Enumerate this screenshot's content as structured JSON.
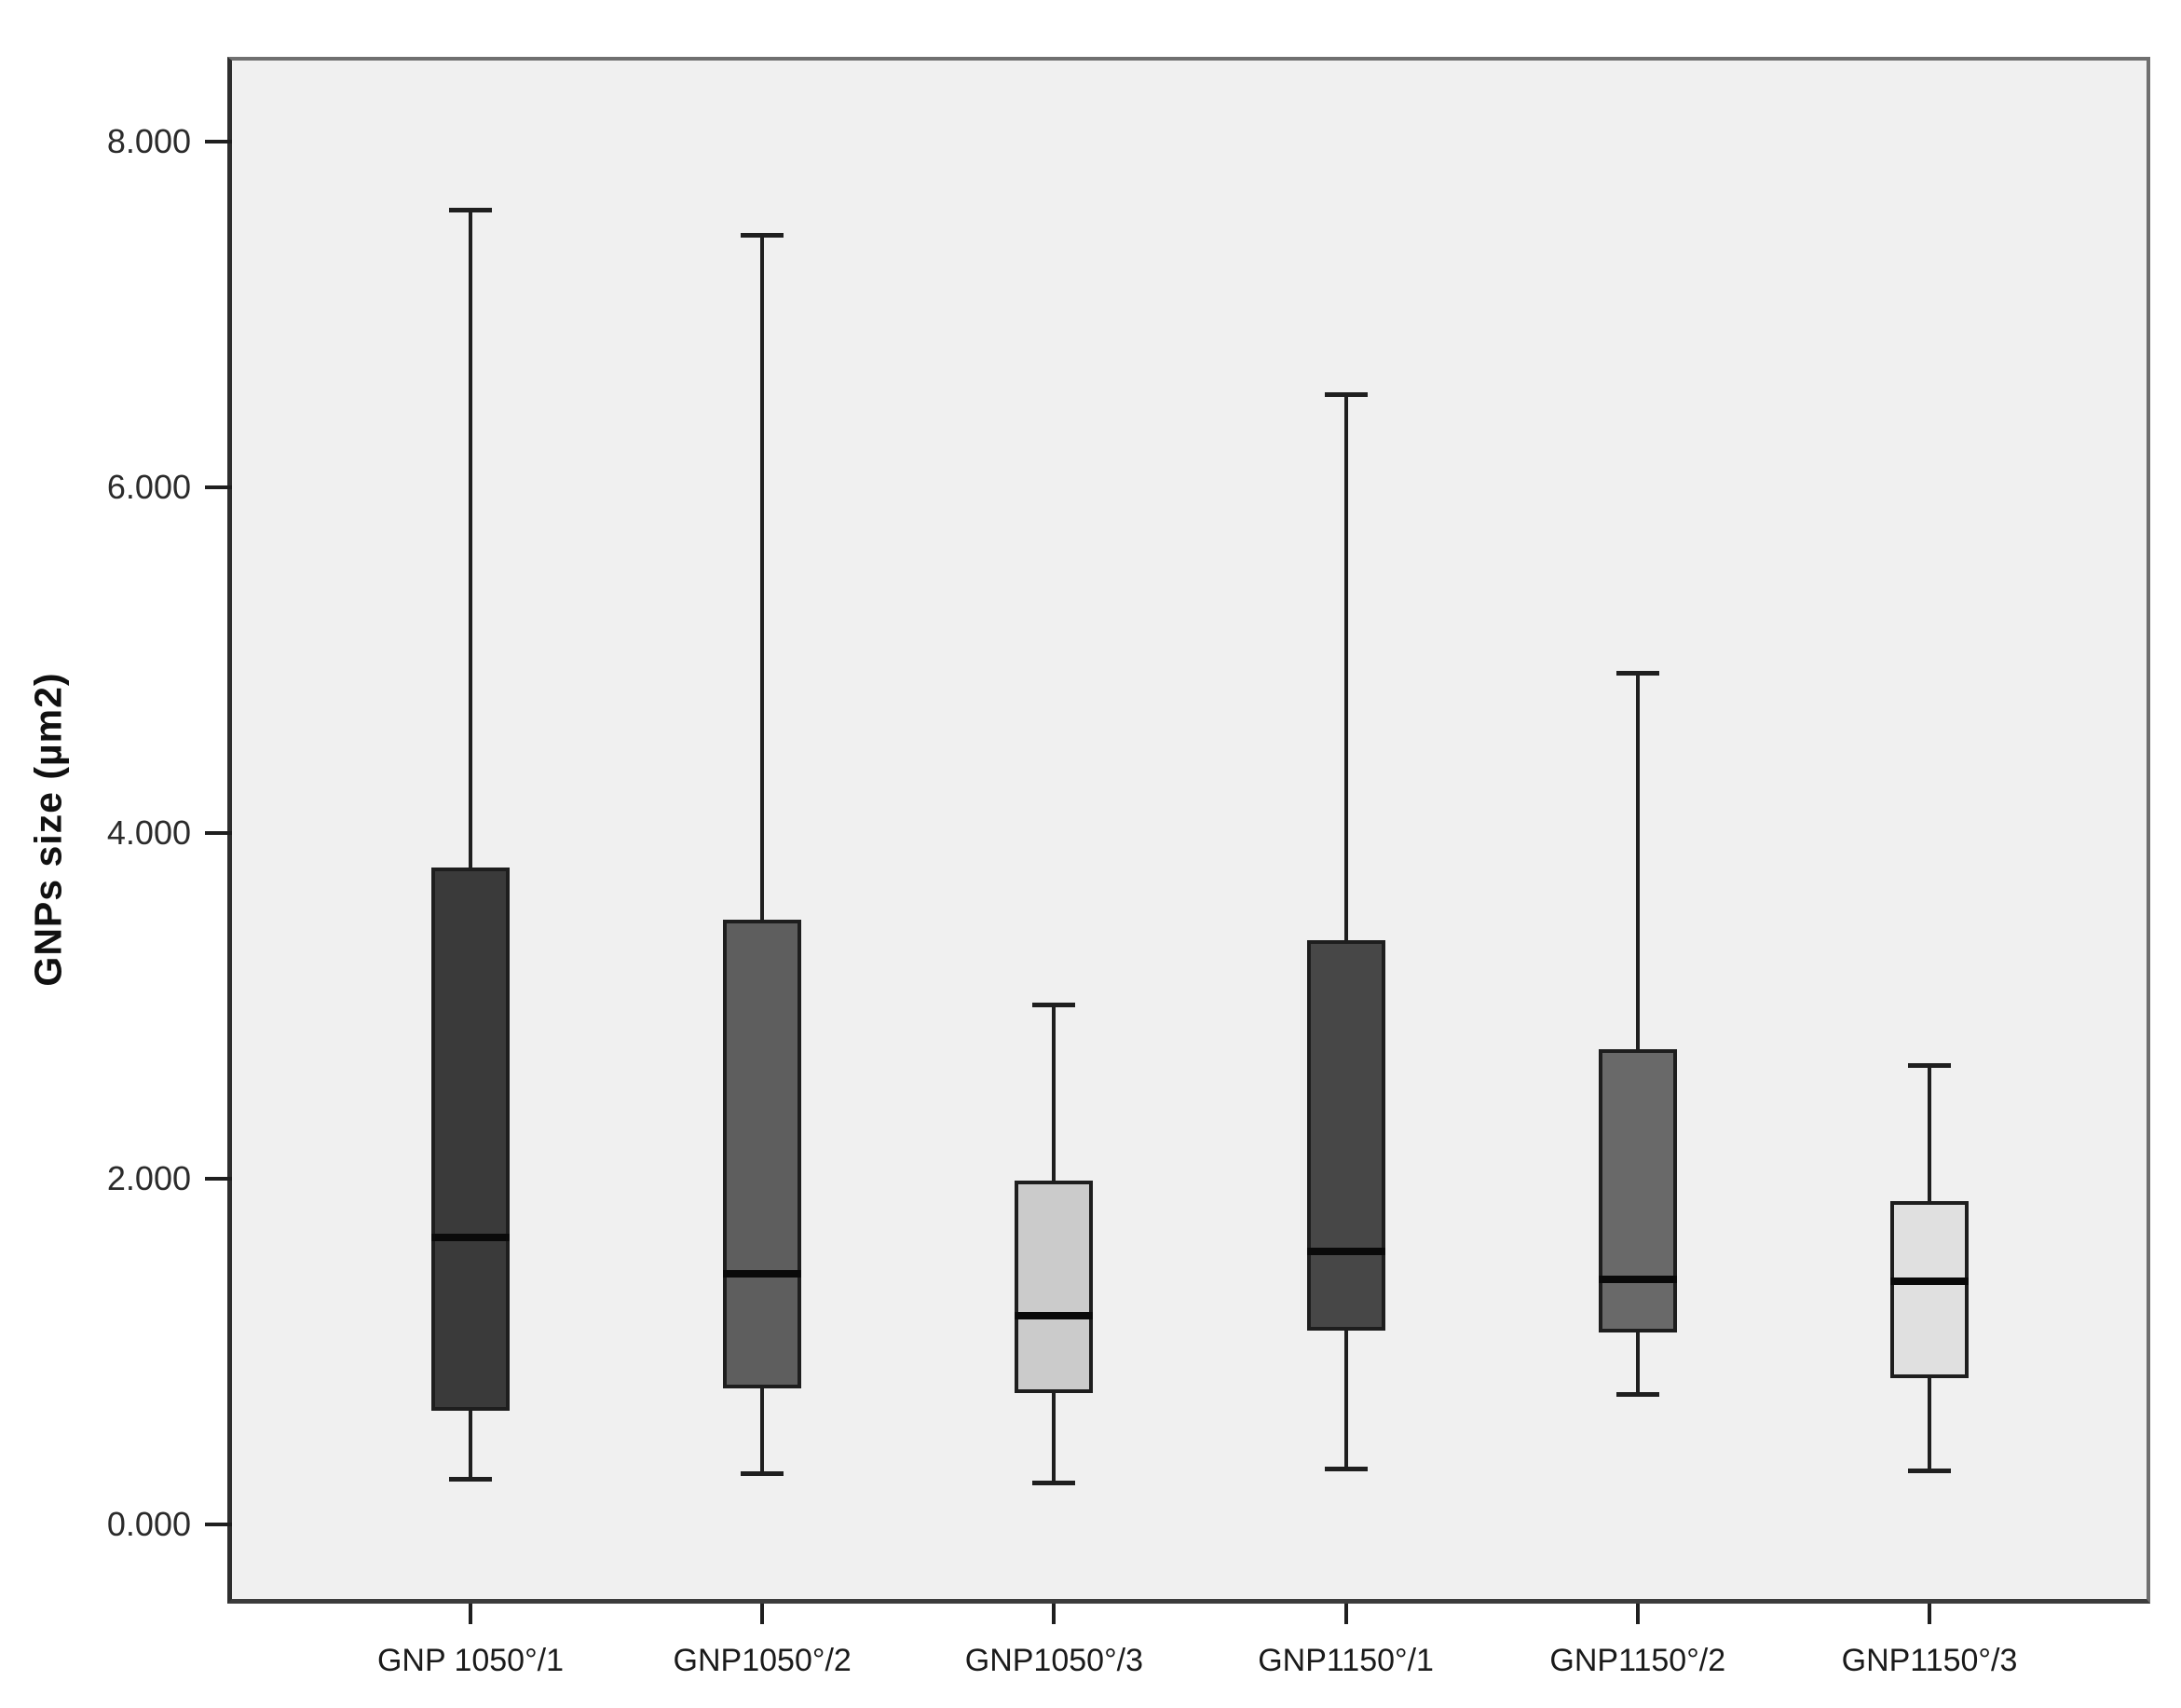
{
  "chart_data": {
    "type": "boxplot",
    "title": "",
    "xlabel": "",
    "ylabel": "GNPs size (µm2)",
    "ylim": [
      -0.43,
      8.47
    ],
    "yticks": [
      {
        "value": 8,
        "label": "8.000"
      },
      {
        "value": 6,
        "label": "6.000"
      },
      {
        "value": 4,
        "label": "4.000"
      },
      {
        "value": 2,
        "label": "2.000"
      },
      {
        "value": 0,
        "label": "0.000"
      }
    ],
    "categories": [
      "GNP 1050°/1",
      "GNP1050°/2",
      "GNP1050°/3",
      "GNP1150°/1",
      "GNP1150°/2",
      "GNP1150°/3"
    ],
    "boxes": [
      {
        "category": "GNP 1050°/1",
        "whisker_low": 0.26,
        "q1": 0.66,
        "median": 1.66,
        "q3": 3.8,
        "whisker_high": 7.61,
        "fill": "#3a3a3a"
      },
      {
        "category": "GNP1050°/2",
        "whisker_low": 0.29,
        "q1": 0.79,
        "median": 1.45,
        "q3": 3.5,
        "whisker_high": 7.46,
        "fill": "#5e5e5e"
      },
      {
        "category": "GNP1050°/3",
        "whisker_low": 0.24,
        "q1": 0.76,
        "median": 1.21,
        "q3": 1.99,
        "whisker_high": 3.01,
        "fill": "#cbcbcb"
      },
      {
        "category": "GNP1150°/1",
        "whisker_low": 0.32,
        "q1": 1.12,
        "median": 1.58,
        "q3": 3.38,
        "whisker_high": 6.54,
        "fill": "#474747"
      },
      {
        "category": "GNP1150°/2",
        "whisker_low": 0.75,
        "q1": 1.11,
        "median": 1.42,
        "q3": 2.75,
        "whisker_high": 4.93,
        "fill": "#696969"
      },
      {
        "category": "GNP1150°/3",
        "whisker_low": 0.31,
        "q1": 0.85,
        "median": 1.41,
        "q3": 1.87,
        "whisker_high": 2.66,
        "fill": "#e0e0e0"
      }
    ],
    "layout": {
      "grid": false,
      "legend": "none",
      "plot_background": "#f0f0f0",
      "page_background": "#ffffff",
      "frame_color": "#5f5f5f"
    }
  }
}
